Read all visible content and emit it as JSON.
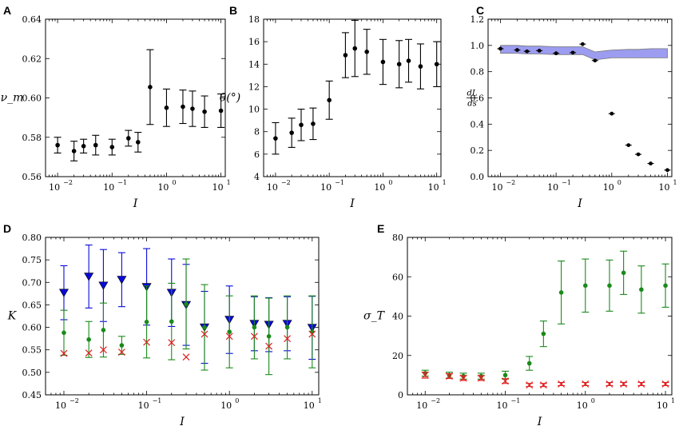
{
  "chart_data": [
    {
      "panel": "A",
      "type": "scatter",
      "xscale": "log",
      "xlim": [
        0.006,
        12
      ],
      "ylim": [
        0.56,
        0.64
      ],
      "xlabel": "I",
      "ylabel": "ν_m",
      "xticks": [
        {
          "v": 0.01,
          "label": "10"
        },
        {
          "v": 0.1,
          "label": "10"
        },
        {
          "v": 1,
          "label": "10"
        },
        {
          "v": 10,
          "label": "10"
        }
      ],
      "xtick_exponents": [
        "−2",
        "−1",
        "0",
        "1"
      ],
      "yticks": [
        {
          "v": 0.56,
          "label": "0.56"
        },
        {
          "v": 0.58,
          "label": "0.58"
        },
        {
          "v": 0.6,
          "label": "0.60"
        },
        {
          "v": 0.62,
          "label": "0.62"
        },
        {
          "v": 0.64,
          "label": "0.64"
        }
      ],
      "series": [
        {
          "name": "nu_m",
          "marker": "dot",
          "color": "#000000",
          "x": [
            0.01,
            0.02,
            0.03,
            0.05,
            0.1,
            0.2,
            0.3,
            0.5,
            1,
            2,
            3,
            5,
            10
          ],
          "y": [
            0.576,
            0.573,
            0.5755,
            0.576,
            0.575,
            0.5795,
            0.5775,
            0.6055,
            0.595,
            0.5955,
            0.5945,
            0.593,
            0.5935
          ],
          "err": [
            0.004,
            0.005,
            0.0035,
            0.005,
            0.004,
            0.004,
            0.005,
            0.019,
            0.0095,
            0.0085,
            0.009,
            0.008,
            0.0085
          ]
        }
      ]
    },
    {
      "panel": "B",
      "type": "scatter",
      "xscale": "log",
      "xlim": [
        0.006,
        12
      ],
      "ylim": [
        4,
        18
      ],
      "xlabel": "I",
      "ylabel": "θ(°)",
      "xticks": [
        {
          "v": 0.01,
          "label": "10"
        },
        {
          "v": 0.1,
          "label": "10"
        },
        {
          "v": 1,
          "label": "10"
        },
        {
          "v": 10,
          "label": "10"
        }
      ],
      "xtick_exponents": [
        "−2",
        "−1",
        "0",
        "1"
      ],
      "yticks": [
        {
          "v": 4,
          "label": "4"
        },
        {
          "v": 6,
          "label": "6"
        },
        {
          "v": 8,
          "label": "8"
        },
        {
          "v": 10,
          "label": "10"
        },
        {
          "v": 12,
          "label": "12"
        },
        {
          "v": 14,
          "label": "14"
        },
        {
          "v": 16,
          "label": "16"
        },
        {
          "v": 18,
          "label": "18"
        }
      ],
      "series": [
        {
          "name": "theta",
          "marker": "dot",
          "color": "#000000",
          "x": [
            0.01,
            0.02,
            0.03,
            0.05,
            0.1,
            0.2,
            0.3,
            0.5,
            1,
            2,
            3,
            5,
            10
          ],
          "y": [
            7.4,
            7.9,
            8.6,
            8.7,
            10.8,
            14.8,
            15.4,
            15.1,
            14.2,
            14.0,
            14.3,
            13.8,
            14.0
          ],
          "err": [
            1.4,
            1.3,
            1.4,
            1.4,
            1.7,
            2.0,
            2.5,
            2.0,
            2.0,
            2.1,
            1.9,
            2.0,
            2.0
          ]
        }
      ]
    },
    {
      "panel": "C",
      "type": "scatter",
      "xscale": "log",
      "xlim": [
        0.006,
        12
      ],
      "ylim": [
        0,
        1.2
      ],
      "xlabel": "I",
      "ylabel_top": "dL",
      "ylabel_bottom": "ds",
      "xticks": [
        {
          "v": 0.01,
          "label": "10"
        },
        {
          "v": 0.1,
          "label": "10"
        },
        {
          "v": 1,
          "label": "10"
        },
        {
          "v": 10,
          "label": "10"
        }
      ],
      "xtick_exponents": [
        "−2",
        "−1",
        "0",
        "1"
      ],
      "yticks": [
        {
          "v": 0,
          "label": "0.0"
        },
        {
          "v": 0.2,
          "label": "0.2"
        },
        {
          "v": 0.4,
          "label": "0.4"
        },
        {
          "v": 0.6,
          "label": "0.6"
        },
        {
          "v": 0.8,
          "label": "0.8"
        },
        {
          "v": 1.0,
          "label": "1.0"
        },
        {
          "v": 1.2,
          "label": "1.2"
        }
      ],
      "band": {
        "color": "#9c9cf0",
        "x": [
          0.01,
          0.02,
          0.03,
          0.05,
          0.1,
          0.2,
          0.3,
          0.5,
          1,
          2,
          3,
          5,
          10
        ],
        "lower": [
          0.94,
          0.94,
          0.935,
          0.935,
          0.93,
          0.93,
          0.93,
          0.89,
          0.905,
          0.905,
          0.905,
          0.905,
          0.905
        ],
        "upper": [
          1.0,
          1.0,
          0.995,
          0.995,
          0.99,
          0.99,
          0.99,
          0.95,
          0.965,
          0.97,
          0.97,
          0.975,
          0.975
        ]
      },
      "series": [
        {
          "name": "dLds",
          "marker": "dot-hbar",
          "color": "#000000",
          "x": [
            0.01,
            0.02,
            0.03,
            0.05,
            0.1,
            0.2,
            0.3,
            0.5,
            1,
            2,
            3,
            5,
            10
          ],
          "y": [
            0.975,
            0.965,
            0.955,
            0.96,
            0.94,
            0.945,
            1.01,
            0.885,
            0.48,
            0.24,
            0.17,
            0.1,
            0.05
          ]
        }
      ]
    },
    {
      "panel": "D",
      "type": "scatter",
      "xscale": "log",
      "xlim": [
        0.006,
        12
      ],
      "ylim": [
        0.45,
        0.8
      ],
      "xlabel": "I",
      "ylabel": "K",
      "xticks": [
        {
          "v": 0.01,
          "label": "10"
        },
        {
          "v": 0.1,
          "label": "10"
        },
        {
          "v": 1,
          "label": "10"
        },
        {
          "v": 10,
          "label": "10"
        }
      ],
      "xtick_exponents": [
        "−2",
        "−1",
        "0",
        "1"
      ],
      "yticks": [
        {
          "v": 0.45,
          "label": "0.45"
        },
        {
          "v": 0.5,
          "label": "0.50"
        },
        {
          "v": 0.55,
          "label": "0.55"
        },
        {
          "v": 0.6,
          "label": "0.60"
        },
        {
          "v": 0.65,
          "label": "0.65"
        },
        {
          "v": 0.7,
          "label": "0.70"
        },
        {
          "v": 0.75,
          "label": "0.75"
        },
        {
          "v": 0.8,
          "label": "0.80"
        }
      ],
      "series": [
        {
          "name": "blue",
          "marker": "triangle-down",
          "color": "#0a0ad8",
          "x": [
            0.01,
            0.02,
            0.03,
            0.05,
            0.1,
            0.2,
            0.3,
            0.5,
            1,
            2,
            3,
            5,
            10
          ],
          "y": [
            0.677,
            0.713,
            0.693,
            0.706,
            0.69,
            0.677,
            0.65,
            0.6,
            0.617,
            0.608,
            0.606,
            0.608,
            0.599
          ],
          "err": [
            0.06,
            0.07,
            0.08,
            0.06,
            0.085,
            0.075,
            0.09,
            0.08,
            0.075,
            0.06,
            0.06,
            0.06,
            0.07
          ]
        },
        {
          "name": "green",
          "marker": "dot",
          "color": "#1a8a1a",
          "x": [
            0.01,
            0.02,
            0.03,
            0.05,
            0.1,
            0.2,
            0.3,
            0.5,
            1,
            2,
            3,
            5,
            10
          ],
          "y": [
            0.588,
            0.573,
            0.594,
            0.56,
            0.612,
            0.613,
            0.652,
            0.6,
            0.59,
            0.6,
            0.58,
            0.6,
            0.59
          ],
          "err": [
            0.05,
            0.04,
            0.06,
            0.02,
            0.08,
            0.085,
            0.1,
            0.095,
            0.08,
            0.07,
            0.085,
            0.07,
            0.08
          ]
        },
        {
          "name": "red",
          "marker": "x",
          "color": "#e02020",
          "x": [
            0.01,
            0.02,
            0.03,
            0.05,
            0.1,
            0.2,
            0.3,
            0.5,
            1,
            2,
            3,
            5,
            10
          ],
          "y": [
            0.542,
            0.543,
            0.55,
            0.545,
            0.567,
            0.566,
            0.534,
            0.585,
            0.58,
            0.58,
            0.558,
            0.575,
            0.585
          ]
        }
      ]
    },
    {
      "panel": "E",
      "type": "scatter",
      "xscale": "log",
      "xlim": [
        0.006,
        12
      ],
      "ylim": [
        0,
        80
      ],
      "xlabel": "I",
      "ylabel": "σ_T",
      "xticks": [
        {
          "v": 0.01,
          "label": "10"
        },
        {
          "v": 0.1,
          "label": "10"
        },
        {
          "v": 1,
          "label": "10"
        },
        {
          "v": 10,
          "label": "10"
        }
      ],
      "xtick_exponents": [
        "−2",
        "−1",
        "0",
        "1"
      ],
      "yticks": [
        {
          "v": 0,
          "label": "0"
        },
        {
          "v": 20,
          "label": "20"
        },
        {
          "v": 40,
          "label": "40"
        },
        {
          "v": 60,
          "label": "60"
        },
        {
          "v": 80,
          "label": "80"
        }
      ],
      "series": [
        {
          "name": "green",
          "marker": "dot",
          "color": "#1a8a1a",
          "x": [
            0.01,
            0.02,
            0.03,
            0.05,
            0.1,
            0.2,
            0.3,
            0.5,
            1,
            2,
            3,
            5,
            10
          ],
          "y": [
            11,
            10,
            9.5,
            9.5,
            10,
            16,
            31,
            52,
            55.5,
            55.5,
            62,
            53.5,
            55.5
          ],
          "err": [
            1.5,
            1.5,
            1.5,
            1.5,
            2,
            3.5,
            6.5,
            16,
            13.5,
            13,
            11,
            12,
            11
          ]
        },
        {
          "name": "red",
          "marker": "x",
          "color": "#e02020",
          "x": [
            0.01,
            0.02,
            0.03,
            0.05,
            0.1,
            0.2,
            0.3,
            0.5,
            1,
            2,
            3,
            5,
            10
          ],
          "y": [
            10,
            9.5,
            8.5,
            8.5,
            7,
            5,
            5,
            5.5,
            5.5,
            5.5,
            5.5,
            5.5,
            5.5
          ],
          "err": [
            1.5,
            1.2,
            1.2,
            1.2,
            1.2,
            0.8,
            0.8,
            0.8,
            0.8,
            0.8,
            0.8,
            0.8,
            0.8
          ]
        }
      ]
    }
  ]
}
